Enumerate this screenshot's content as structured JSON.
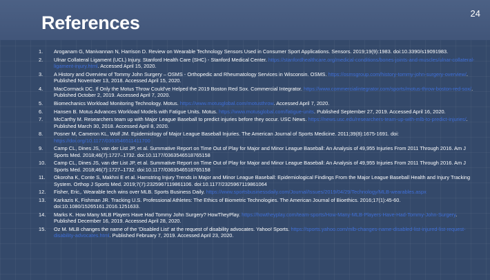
{
  "page_number": "24",
  "title": "References",
  "references": [
    {
      "number": "1.",
      "text": "Aroganam G, Manivannan N, Harrison D. Review on Wearable Technology Sensors Used in Consumer Sport Applications. Sensors. 2019;19(9):1983. doi:10.3390/s19091983.",
      "link": "",
      "after": ""
    },
    {
      "number": "2.",
      "text": "Ulnar Collateral Ligament (UCL) Injury. Stanford Health Care (SHC) - Stanford Medical Center.",
      "link": "https://stanfordhealthcare.org/medical-conditions/bones-joints-and-muscles/ulnar-collateral-ligament-injury.html",
      "after": ". Accessed April 15, 2020."
    },
    {
      "number": "3.",
      "text": "A History and Overview of Tommy John Surgery – OSMS - Orthopedic and Rheumatology Services in Wisconsin. OSMS.",
      "link": "https://osmsgroup.com/history-tommy-john-surgery-overview/",
      "after": ". Published November 13, 2018. Accessed April 15, 2020."
    },
    {
      "number": "4.",
      "text": "MacCormack DC. If Only the Motus Throw Could've Helped the 2019 Boston Red Sox. Commercial Integrator.",
      "link": "https://www.commercialintegrator.com/sports/motus-throw-boston-red-sox/",
      "after": ". Published October 2, 2019. Accessed April 7, 2020."
    },
    {
      "number": "5.",
      "text": "Biomechanics Workload Monitoring Technology. Motus.",
      "link": "https://www.motusglobal.com/motusthrow",
      "after": ". Accessed April 7, 2020."
    },
    {
      "number": "6.",
      "text": "Hansen B. Motus Advances Workload Models with Fatigue Units. Motus.",
      "link": "https://www.motusglobal.com/fatigue-units",
      "after": ". Published September 27, 2019. Accessed April 16, 2020."
    },
    {
      "number": "7.",
      "text": "McCarthy M. Researchers team up with Major League Baseball to predict injuries before they occur. USC News.",
      "link": "https://news.usc.edu/researchers-team-up-with-mlb-to-predict-injuries/",
      "after": ". Published March 30, 2018. Accessed April 8, 2020."
    },
    {
      "number": "8.",
      "text": "Posner M, Cameron KL, Wolf JM. Epidemiology of Major League Baseball Injuries. The American Journal of Sports Medicine. 2011;39(8):1675-1691. doi:",
      "link": "https://doi.org/10.1177/0363546511411700",
      "after": ""
    },
    {
      "number": "9.",
      "text": "Camp CL, Dines JS, van der List JP, et al. Summative Report on Time Out of Play for Major and Minor League Baseball: An Analysis of 49,955 Injuries From 2011 Through 2016. Am J Sports Med. 2018;46(7):1727–1732. doi:10.1177/0363546518765158",
      "link": "",
      "after": ""
    },
    {
      "number": "10.",
      "text": "Camp CL, Dines JS, van der List JP, et al. Summative Report on Time Out of Play for Major and Minor League Baseball: An Analysis of 49,955 Injuries From 2011 Through 2016. Am J Sports Med. 2018;46(7):1727–1732. doi:10.1177/0363546518765158",
      "link": "",
      "after": ""
    },
    {
      "number": "11.",
      "text": "Okoroha K, Conte S, Makhni E et al. Hamstring Injury Trends in Major and Minor League Baseball: Epidemiological Findings From the Major League Baseball Health and Injury Tracking System. Orthop J Sports Med. 2019;7(7):2325967119861106. doi:10.1177/2325967119861064",
      "link": "",
      "after": ""
    },
    {
      "number": "12.",
      "text": "Fisher, Eric,. Wearable tech wins over MLB. Sports Business Daily.",
      "link": "https://www.sportsbusinessdaily.com/Journal/Issues/2019/04/29/Technology/MLB-wearables.aspx",
      "after": ""
    },
    {
      "number": "13.",
      "text": "Karkazis K, Fishman JR. Tracking U.S. Professional Athletes: The Ethics of Biometric Technologies. The American Journal of Bioethics. 2016;17(1):45-60. doi:10.1080/15265161.2016.1251633.",
      "link": "",
      "after": ""
    },
    {
      "number": "14.",
      "text": "Marks K. How Many MLB Players Have Had Tommy John Surgery? HowTheyPlay.",
      "link": "https://howtheyplay.com/team-sports/How-Many-MLB-Players-Have-Had-Tommy-John-Surgery",
      "after": ". Published December 16, 2019. Accessed April 28, 2020."
    },
    {
      "number": "15.",
      "text": "Oz M. MLB changes the name of the 'Disabled List' at the request of disability advocates. Yahoo! Sports.",
      "link": "https://sports.yahoo.com/mlb-changes-name-disabled-list-injured-list-request-disability-advocates.html",
      "after": ". Published February 7, 2019. Accessed April 23, 2020."
    }
  ]
}
